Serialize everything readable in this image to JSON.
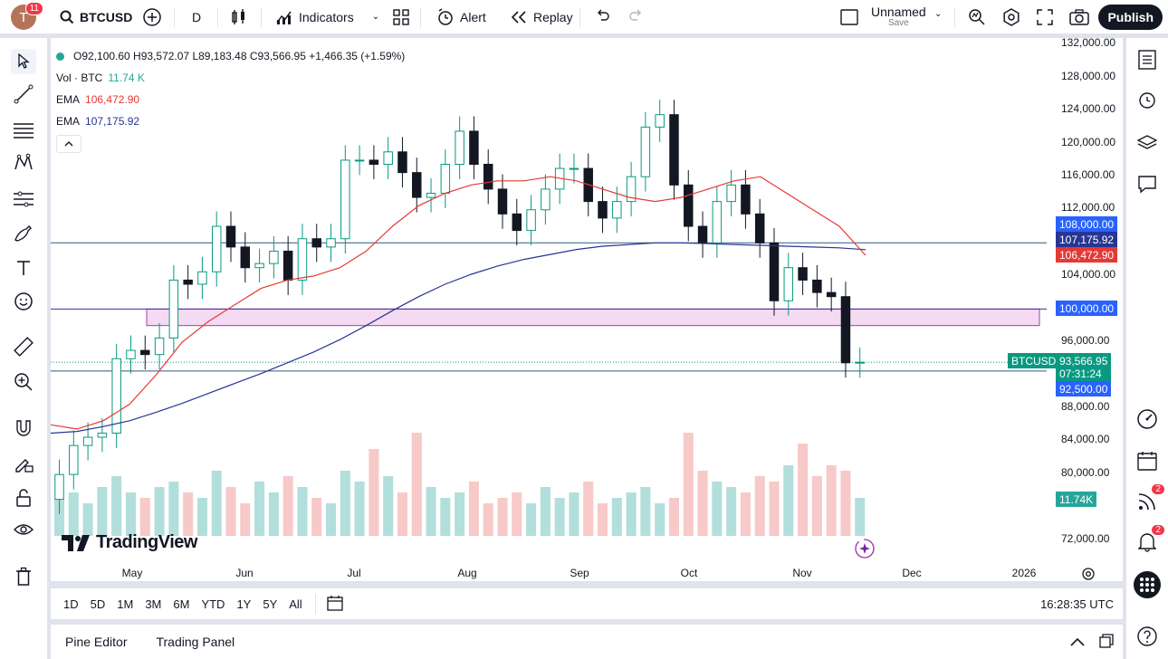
{
  "topbar": {
    "avatar_letter": "T",
    "notifications": "11",
    "symbol": "BTCUSD",
    "interval": "D",
    "indicators_label": "Indicators",
    "alert_label": "Alert",
    "replay_label": "Replay",
    "layout_name": "Unnamed",
    "layout_save": "Save",
    "publish_label": "Publish"
  },
  "legend": {
    "ohlc": "O92,100.60 H93,572.07 L89,183.48 C93,566.95 +1,466.35 (+1.59%)",
    "vol_label": "Vol · BTC",
    "vol_value": "11.74 K",
    "ema1_label": "EMA",
    "ema1_value": "106,472.90",
    "ema2_label": "EMA",
    "ema2_value": "107,175.92"
  },
  "price_axis": {
    "ticks": [
      "132,000.00",
      "128,000.00",
      "124,000.00",
      "120,000.00",
      "116,000.00",
      "112,000.00",
      "104,000.00",
      "96,000.00",
      "88,000.00",
      "84,000.00",
      "80,000.00",
      "72,000.00"
    ],
    "labels": {
      "line1": "108,000.00",
      "ema_slow": "107,175.92",
      "ema_fast": "106,472.90",
      "line2": "100,000.00",
      "symbol": "BTCUSD",
      "last": "93,566.95",
      "countdown": "07:31:24",
      "line3": "92,500.00",
      "volume": "11.74K"
    }
  },
  "time_axis": {
    "ticks": [
      "May",
      "Jun",
      "Jul",
      "Aug",
      "Sep",
      "Oct",
      "Nov",
      "Dec",
      "2026"
    ]
  },
  "ranges": [
    "1D",
    "5D",
    "1M",
    "3M",
    "6M",
    "YTD",
    "1Y",
    "5Y",
    "All"
  ],
  "clock": "16:28:35 UTC",
  "bottom": {
    "pine_editor": "Pine Editor",
    "trading_panel": "Trading Panel"
  },
  "brand": "TradingView",
  "right_badges": {
    "feed": "2",
    "alerts": "2"
  },
  "colors": {
    "up": "#26a69a",
    "down": "#ef5350",
    "ema_fast": "#e53935",
    "ema_slow": "#283593",
    "line_label": "#2962ff",
    "zone": "#f3d6f2"
  },
  "chart_data": {
    "type": "candlestick",
    "ylim": [
      68000,
      134000
    ],
    "x_domain": [
      "2025-04-13",
      "2026-01-18"
    ],
    "horizontal_lines": [
      108000,
      100000,
      92500
    ],
    "zone": [
      98000,
      100000
    ],
    "ema_fast_values": [
      86000,
      85500,
      86500,
      88500,
      92000,
      96000,
      98500,
      100500,
      102500,
      103500,
      104000,
      105000,
      107000,
      110000,
      112500,
      114000,
      115000,
      115500,
      115500,
      116000,
      115500,
      114500,
      113500,
      113000,
      113500,
      114500,
      115500,
      116000,
      114000,
      112000,
      110000,
      106500
    ],
    "ema_slow_values": [
      85000,
      85200,
      85800,
      86500,
      87500,
      88600,
      89800,
      91000,
      92200,
      93500,
      94800,
      96300,
      98000,
      99800,
      101500,
      103000,
      104200,
      105200,
      106000,
      106600,
      107200,
      107600,
      107800,
      108000,
      108000,
      107900,
      107800,
      107700,
      107600,
      107500,
      107400,
      107175
    ],
    "closes": [
      80000,
      83500,
      84500,
      85000,
      94000,
      95000,
      94500,
      96500,
      103500,
      103000,
      104500,
      110000,
      107500,
      105000,
      105500,
      107000,
      103500,
      108500,
      107500,
      108500,
      118000,
      118000,
      117500,
      119000,
      116500,
      113500,
      114000,
      117500,
      121500,
      117500,
      114500,
      111500,
      109500,
      112000,
      114500,
      117000,
      117000,
      113000,
      111000,
      113000,
      116000,
      122000,
      123500,
      115000,
      110000,
      108000,
      113000,
      115000,
      111500,
      108000,
      101000,
      105000,
      103500,
      102000,
      101500,
      93500,
      93567
    ],
    "volumes": [
      0.35,
      0.4,
      0.3,
      0.45,
      0.55,
      0.4,
      0.35,
      0.45,
      0.5,
      0.4,
      0.35,
      0.6,
      0.45,
      0.3,
      0.5,
      0.4,
      0.55,
      0.45,
      0.35,
      0.3,
      0.6,
      0.5,
      0.8,
      0.55,
      0.4,
      0.95,
      0.45,
      0.35,
      0.4,
      0.5,
      0.3,
      0.35,
      0.4,
      0.3,
      0.45,
      0.35,
      0.4,
      0.5,
      0.3,
      0.35,
      0.4,
      0.45,
      0.3,
      0.35,
      0.95,
      0.6,
      0.5,
      0.45,
      0.4,
      0.55,
      0.5,
      0.65,
      0.85,
      0.55,
      0.65,
      0.6,
      0.35
    ]
  }
}
